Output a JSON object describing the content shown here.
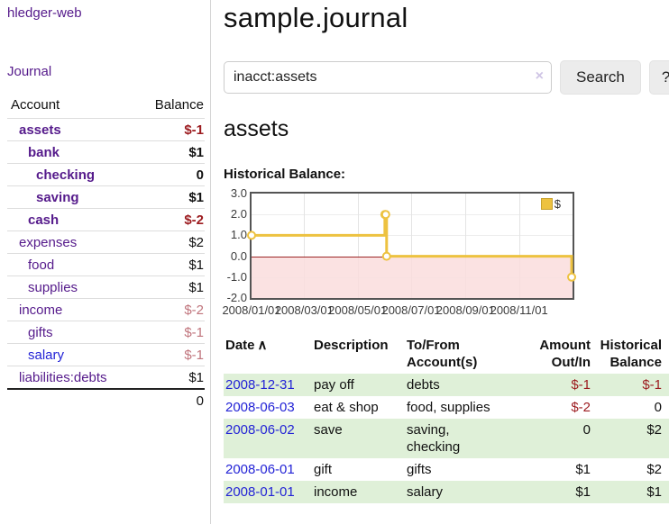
{
  "app": {
    "title": "hledger-web"
  },
  "sidebar": {
    "journal_link": "Journal",
    "accounts_table": {
      "headers": {
        "account": "Account",
        "balance": "Balance"
      },
      "rows": [
        {
          "account": "assets",
          "balance": "$-1",
          "depth": 1,
          "bold": true,
          "link_color": "purple"
        },
        {
          "account": "bank",
          "balance": "$1",
          "depth": 2,
          "bold": true,
          "link_color": "purple"
        },
        {
          "account": "checking",
          "balance": "0",
          "depth": 3,
          "bold": true,
          "link_color": "purple"
        },
        {
          "account": "saving",
          "balance": "$1",
          "depth": 3,
          "bold": true,
          "link_color": "purple"
        },
        {
          "account": "cash",
          "balance": "$-2",
          "depth": 2,
          "bold": true,
          "link_color": "purple"
        },
        {
          "account": "expenses",
          "balance": "$2",
          "depth": 1,
          "bold": false,
          "link_color": "purple"
        },
        {
          "account": "food",
          "balance": "$1",
          "depth": 2,
          "bold": false,
          "link_color": "purple"
        },
        {
          "account": "supplies",
          "balance": "$1",
          "depth": 2,
          "bold": false,
          "link_color": "purple"
        },
        {
          "account": "income",
          "balance": "$-2",
          "depth": 1,
          "bold": false,
          "link_color": "purple"
        },
        {
          "account": "gifts",
          "balance": "$-1",
          "depth": 2,
          "bold": false,
          "link_color": "purple"
        },
        {
          "account": "salary",
          "balance": "$-1",
          "depth": 2,
          "bold": false,
          "link_color": "blue"
        },
        {
          "account": "liabilities:debts",
          "balance": "$1",
          "depth": 1,
          "bold": false,
          "link_color": "purple"
        }
      ],
      "total": "0"
    }
  },
  "header": {
    "title": "sample.journal"
  },
  "search": {
    "value": "inacct:assets",
    "clear_icon": "×",
    "button_label": "Search",
    "help_label": "?"
  },
  "account_page": {
    "title": "assets",
    "chart_heading": "Historical Balance:"
  },
  "chart_data": {
    "type": "line",
    "title": "Historical Balance:",
    "step": true,
    "series": [
      {
        "name": "$",
        "color": "#edc240",
        "points": [
          {
            "date": "2008-01-01",
            "value": 1
          },
          {
            "date": "2008-06-01",
            "value": 2
          },
          {
            "date": "2008-06-02",
            "value": 2
          },
          {
            "date": "2008-06-03",
            "value": 0
          },
          {
            "date": "2008-12-31",
            "value": -1
          }
        ]
      }
    ],
    "xlim": [
      "2008-01-01",
      "2009-01-01"
    ],
    "ylim": [
      -2,
      3
    ],
    "y_ticks": [
      3.0,
      2.0,
      1.0,
      0.0,
      -1.0,
      -2.0
    ],
    "x_ticks": [
      {
        "label": "2008/01/01",
        "date": "2008-01-01"
      },
      {
        "label": "2008/03/01",
        "date": "2008-03-01"
      },
      {
        "label": "2008/05/01",
        "date": "2008-05-01"
      },
      {
        "label": "2008/07/01",
        "date": "2008-07-01"
      },
      {
        "label": "2008/09/01",
        "date": "2008-09-01"
      },
      {
        "label": "2008/11/01",
        "date": "2008-11-01"
      }
    ],
    "grid": true,
    "legend": {
      "label": "$",
      "position": "top-right"
    },
    "negative_region_color": "#fbdede",
    "zero_line_color": "#8b0000"
  },
  "register": {
    "columns": {
      "date": "Date",
      "sort_indicator": "∧",
      "description": "Description",
      "accounts_line1": "To/From",
      "accounts_line2": "Account(s)",
      "amount_line1": "Amount",
      "amount_line2": "Out/In",
      "balance_line1": "Historical",
      "balance_line2": "Balance"
    },
    "rows": [
      {
        "date": "2008-12-31",
        "description": "pay off",
        "accounts": "debts",
        "amount": "$-1",
        "balance": "$-1"
      },
      {
        "date": "2008-06-03",
        "description": "eat & shop",
        "accounts": "food, supplies",
        "amount": "$-2",
        "balance": "0"
      },
      {
        "date": "2008-06-02",
        "description": "save",
        "accounts": "saving,\nchecking",
        "amount": "0",
        "balance": "$2"
      },
      {
        "date": "2008-06-01",
        "description": "gift",
        "accounts": "gifts",
        "amount": "$1",
        "balance": "$2"
      },
      {
        "date": "2008-01-01",
        "description": "income",
        "accounts": "salary",
        "amount": "$1",
        "balance": "$1"
      }
    ]
  },
  "colors": {
    "link_purple": "#551a8b",
    "link_blue": "#2323d6",
    "negative_strong": "#9c1b1f",
    "negative_soft": "#c0747c",
    "row_shade_green": "#dff0d8",
    "series_yellow": "#edc240"
  }
}
